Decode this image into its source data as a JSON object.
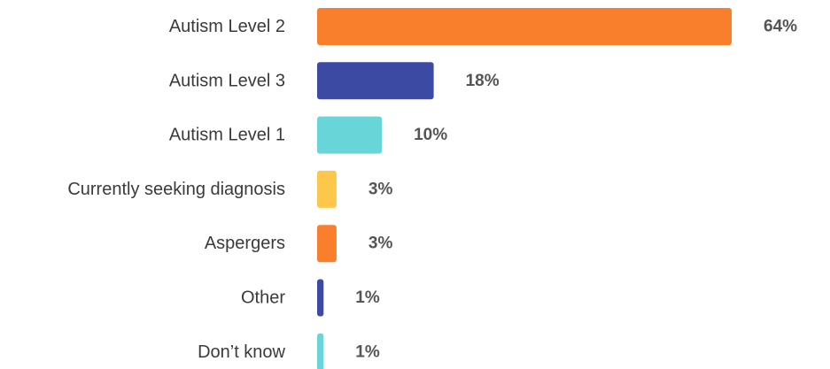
{
  "chart_data": {
    "type": "bar",
    "orientation": "horizontal",
    "categories": [
      "Autism Level 2",
      "Autism Level 3",
      "Autism Level 1",
      "Currently seeking diagnosis",
      "Aspergers",
      "Other",
      "Don’t know"
    ],
    "values": [
      64,
      18,
      10,
      3,
      3,
      1,
      1
    ],
    "value_labels": [
      "64%",
      "18%",
      "10%",
      "3%",
      "3%",
      "1%",
      "1%"
    ],
    "bar_colors": [
      "#f97f2d",
      "#3d4aa3",
      "#68d6d8",
      "#fdc74c",
      "#f97f2d",
      "#3d4aa3",
      "#68d6d8"
    ],
    "xlim": [
      0,
      64
    ],
    "grid": false,
    "legend": "none"
  }
}
